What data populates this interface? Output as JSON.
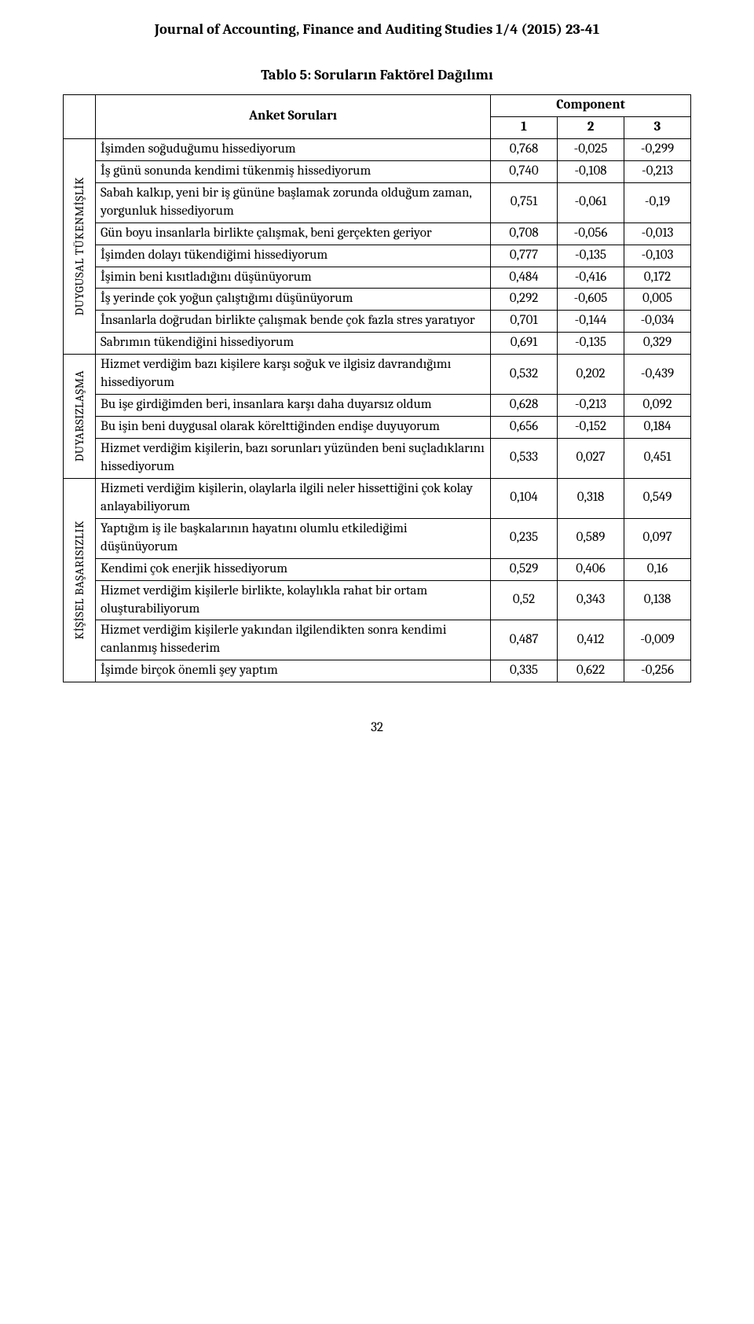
{
  "journal_header": "Journal of Accounting, Finance and Auditing Studies 1/4 (2015) 23-41",
  "table_title": "Tablo 5: Soruların Faktörel Dağılımı",
  "header": {
    "anket": "Anket Soruları",
    "component": "Component",
    "c1": "1",
    "c2": "2",
    "c3": "3"
  },
  "groups": [
    {
      "label": "DUYGUSAL TÜKENMİŞLİK",
      "rows": [
        {
          "q": "İşimden soğuduğumu hissediyorum",
          "v1": "0,768",
          "v2": "-0,025",
          "v3": "-0,299"
        },
        {
          "q": "İş günü sonunda kendimi tükenmiş hissediyorum",
          "v1": "0,740",
          "v2": "-0,108",
          "v3": "-0,213"
        },
        {
          "q": "Sabah kalkıp, yeni bir iş gününe başlamak zorunda olduğum zaman, yorgunluk hissediyorum",
          "v1": "0,751",
          "v2": "-0,061",
          "v3": "-0,19"
        },
        {
          "q": "Gün boyu insanlarla birlikte çalışmak, beni gerçekten geriyor",
          "v1": "0,708",
          "v2": "-0,056",
          "v3": "-0,013"
        },
        {
          "q": "İşimden dolayı tükendiğimi hissediyorum",
          "v1": "0,777",
          "v2": "-0,135",
          "v3": "-0,103"
        },
        {
          "q": "İşimin beni kısıtladığını düşünüyorum",
          "v1": "0,484",
          "v2": "-0,416",
          "v3": "0,172"
        },
        {
          "q": "İş yerinde çok yoğun çalıştığımı düşünüyorum",
          "v1": "0,292",
          "v2": "-0,605",
          "v3": "0,005"
        },
        {
          "q": "İnsanlarla doğrudan birlikte çalışmak bende çok fazla stres yaratıyor",
          "v1": "0,701",
          "v2": "-0,144",
          "v3": "-0,034"
        },
        {
          "q": "Sabrımın tükendiğini hissediyorum",
          "v1": "0,691",
          "v2": "-0,135",
          "v3": "0,329"
        }
      ]
    },
    {
      "label": "DUYARSIZLAŞMA",
      "rows": [
        {
          "q": "Hizmet verdiğim bazı kişilere karşı soğuk ve ilgisiz davrandığımı hissediyorum",
          "v1": "0,532",
          "v2": "0,202",
          "v3": "-0,439"
        },
        {
          "q": "Bu işe girdiğimden beri, insanlara karşı daha duyarsız oldum",
          "v1": "0,628",
          "v2": "-0,213",
          "v3": "0,092"
        },
        {
          "q": "Bu işin beni duygusal olarak körelttiğinden endişe duyuyorum",
          "v1": "0,656",
          "v2": "-0,152",
          "v3": "0,184"
        },
        {
          "q": "Hizmet verdiğim kişilerin, bazı sorunları yüzünden beni suçladıklarını hissediyorum",
          "v1": "0,533",
          "v2": "0,027",
          "v3": "0,451"
        }
      ]
    },
    {
      "label": "KİŞİSEL BAŞARISIZLIK",
      "rows": [
        {
          "q": "Hizmeti verdiğim kişilerin, olaylarla ilgili neler hissettiğini çok kolay anlayabiliyorum",
          "v1": "0,104",
          "v2": "0,318",
          "v3": "0,549"
        },
        {
          "q": "Yaptığım iş ile başkalarının hayatını olumlu etkilediğimi düşünüyorum",
          "v1": "0,235",
          "v2": "0,589",
          "v3": "0,097"
        },
        {
          "q": "Kendimi çok enerjik hissediyorum",
          "v1": "0,529",
          "v2": "0,406",
          "v3": "0,16"
        },
        {
          "q": "Hizmet verdiğim kişilerle birlikte, kolaylıkla rahat bir ortam oluşturabiliyorum",
          "v1": "0,52",
          "v2": "0,343",
          "v3": "0,138"
        },
        {
          "q": "Hizmet verdiğim kişilerle yakından ilgilendikten sonra kendimi canlanmış hissederim",
          "v1": "0,487",
          "v2": "0,412",
          "v3": "-0,009"
        },
        {
          "q": "İşimde birçok önemli şey yaptım",
          "v1": "0,335",
          "v2": "0,622",
          "v3": "-0,256"
        }
      ]
    }
  ],
  "page_number": "32"
}
